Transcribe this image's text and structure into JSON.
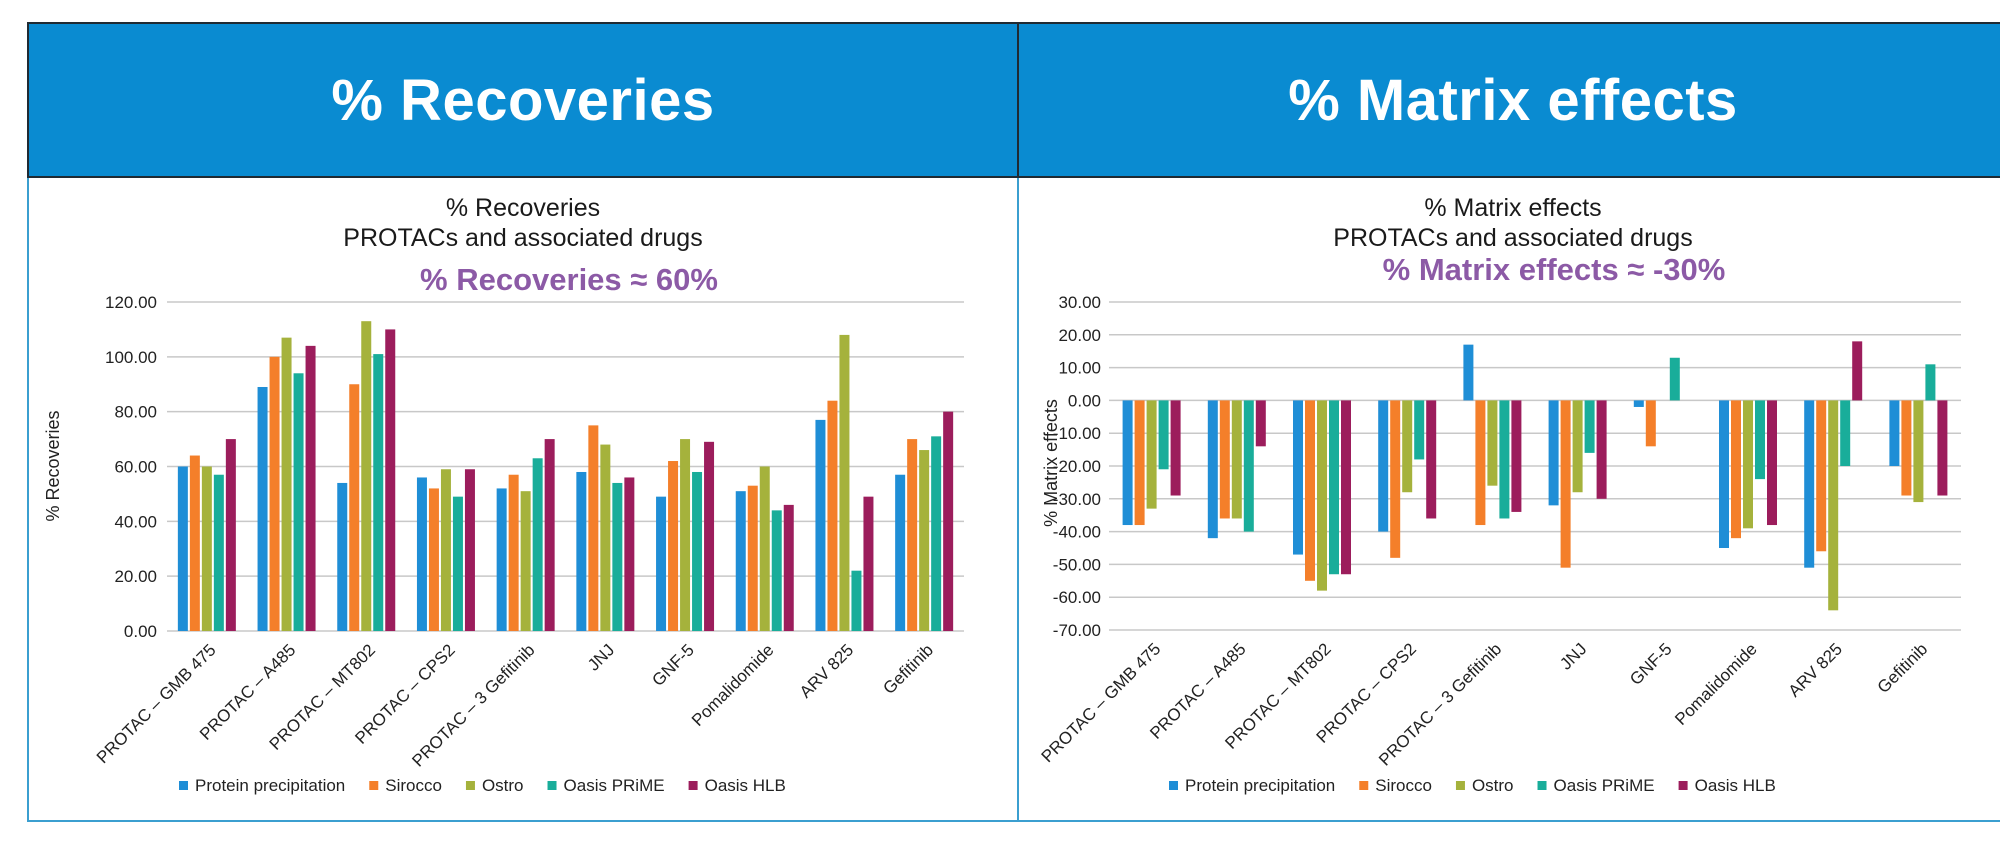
{
  "panels": [
    {
      "banner_title": "% Recoveries",
      "chart_data": {
        "type": "bar",
        "title": "% Recoveries",
        "subtitle": "PROTACs and associated drugs",
        "annotation": "% Recoveries ≈ 60%",
        "xlabel": "",
        "ylabel": "% Recoveries",
        "ylim": [
          0,
          120
        ],
        "yticks": [
          0,
          20,
          40,
          60,
          80,
          100,
          120
        ],
        "ytick_labels": [
          "0.00",
          "20.00",
          "40.00",
          "60.00",
          "80.00",
          "100.00",
          "120.00"
        ],
        "grid": true,
        "legend_position": "bottom",
        "categories": [
          "PROTAC – GMB 475",
          "PROTAC – A485",
          "PROTAC – MT802",
          "PROTAC – CPS2",
          "PROTAC – 3 Gefitinib",
          "JNJ",
          "GNF-5",
          "Pomalidomide",
          "ARV 825",
          "Gefitinib"
        ],
        "series": [
          {
            "name": "Protein precipitation",
            "color": "#1f8ed6",
            "values": [
              60,
              89,
              54,
              56,
              52,
              58,
              49,
              51,
              77,
              57
            ]
          },
          {
            "name": "Sirocco",
            "color": "#f47f2a",
            "values": [
              64,
              100,
              90,
              52,
              57,
              75,
              62,
              53,
              84,
              70
            ]
          },
          {
            "name": "Ostro",
            "color": "#a5b23c",
            "values": [
              60,
              107,
              113,
              59,
              51,
              68,
              70,
              60,
              108,
              66
            ]
          },
          {
            "name": "Oasis PRiME",
            "color": "#19ad9a",
            "values": [
              57,
              94,
              101,
              49,
              63,
              54,
              58,
              44,
              22,
              71
            ]
          },
          {
            "name": "Oasis HLB",
            "color": "#9c1d5c",
            "values": [
              70,
              104,
              110,
              59,
              70,
              56,
              69,
              46,
              49,
              80
            ]
          }
        ]
      }
    },
    {
      "banner_title": "% Matrix effects",
      "chart_data": {
        "type": "bar",
        "title": "% Matrix effects",
        "subtitle": "PROTACs and associated drugs",
        "annotation": "% Matrix effects ≈ -30%",
        "xlabel": "",
        "ylabel": "% Matrix effects",
        "ylim": [
          -70,
          30
        ],
        "yticks": [
          30,
          20,
          10,
          0,
          -10,
          -20,
          -30,
          -40,
          -50,
          -60,
          -70
        ],
        "ytick_labels": [
          "30.00",
          "20.00",
          "10.00",
          "0.00",
          "-10.00",
          "-20.00",
          "-30.00",
          "-40.00",
          "-50.00",
          "-60.00",
          "-70.00"
        ],
        "grid": true,
        "legend_position": "bottom",
        "categories": [
          "PROTAC – GMB 475",
          "PROTAC – A485",
          "PROTAC – MT802",
          "PROTAC – CPS2",
          "PROTAC – 3 Gefitinib",
          "JNJ",
          "GNF-5",
          "Pomalidomide",
          "ARV 825",
          "Gefitinib"
        ],
        "series": [
          {
            "name": "Protein precipitation",
            "color": "#1f8ed6",
            "values": [
              -38,
              -42,
              -47,
              -40,
              17,
              -32,
              -2,
              -45,
              -51,
              -20
            ]
          },
          {
            "name": "Sirocco",
            "color": "#f47f2a",
            "values": [
              -38,
              -36,
              -55,
              -48,
              -38,
              -51,
              -14,
              -42,
              -46,
              -29
            ]
          },
          {
            "name": "Ostro",
            "color": "#a5b23c",
            "values": [
              -33,
              -36,
              -58,
              -28,
              -26,
              -28,
              null,
              -39,
              -64,
              -31
            ]
          },
          {
            "name": "Oasis PRiME",
            "color": "#19ad9a",
            "values": [
              -21,
              -40,
              -53,
              -18,
              -36,
              -16,
              13,
              -24,
              -20,
              11
            ]
          },
          {
            "name": "Oasis HLB",
            "color": "#9c1d5c",
            "values": [
              -29,
              -14,
              -53,
              -36,
              -34,
              -30,
              null,
              -38,
              18,
              -29
            ]
          }
        ]
      }
    }
  ]
}
